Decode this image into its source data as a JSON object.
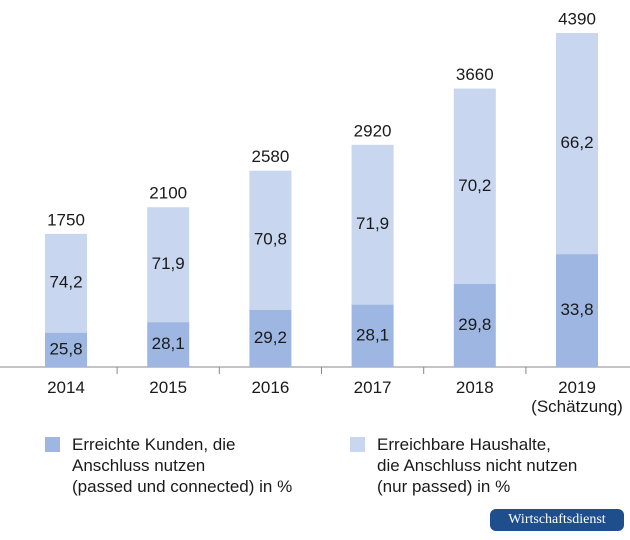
{
  "chart_data": {
    "type": "stacked-bar-percent",
    "categories": [
      "2014",
      "2015",
      "2016",
      "2017",
      "2018",
      "2019\n(Schätzung)"
    ],
    "totals": [
      1750,
      2100,
      2580,
      2920,
      3660,
      4390
    ],
    "series": [
      {
        "name": "Erreichte Kunden, die\nAnschluss nutzen\n(passed und connected) in %",
        "color": "#9db7e2",
        "values": [
          25.8,
          28.1,
          29.2,
          28.1,
          29.8,
          33.8
        ],
        "value_labels": [
          "25,8",
          "28,1",
          "29,2",
          "28,1",
          "29,8",
          "33,8"
        ]
      },
      {
        "name": "Erreichbare Haushalte,\ndie Anschluss nicht nutzen\n(nur passed) in %",
        "color": "#c8d6ef",
        "values": [
          74.2,
          71.9,
          70.8,
          71.9,
          70.2,
          66.2
        ],
        "value_labels": [
          "74,2",
          "71,9",
          "70,8",
          "71,9",
          "70,2",
          "66,2"
        ]
      }
    ],
    "source": "Wirtschaftsdienst"
  }
}
